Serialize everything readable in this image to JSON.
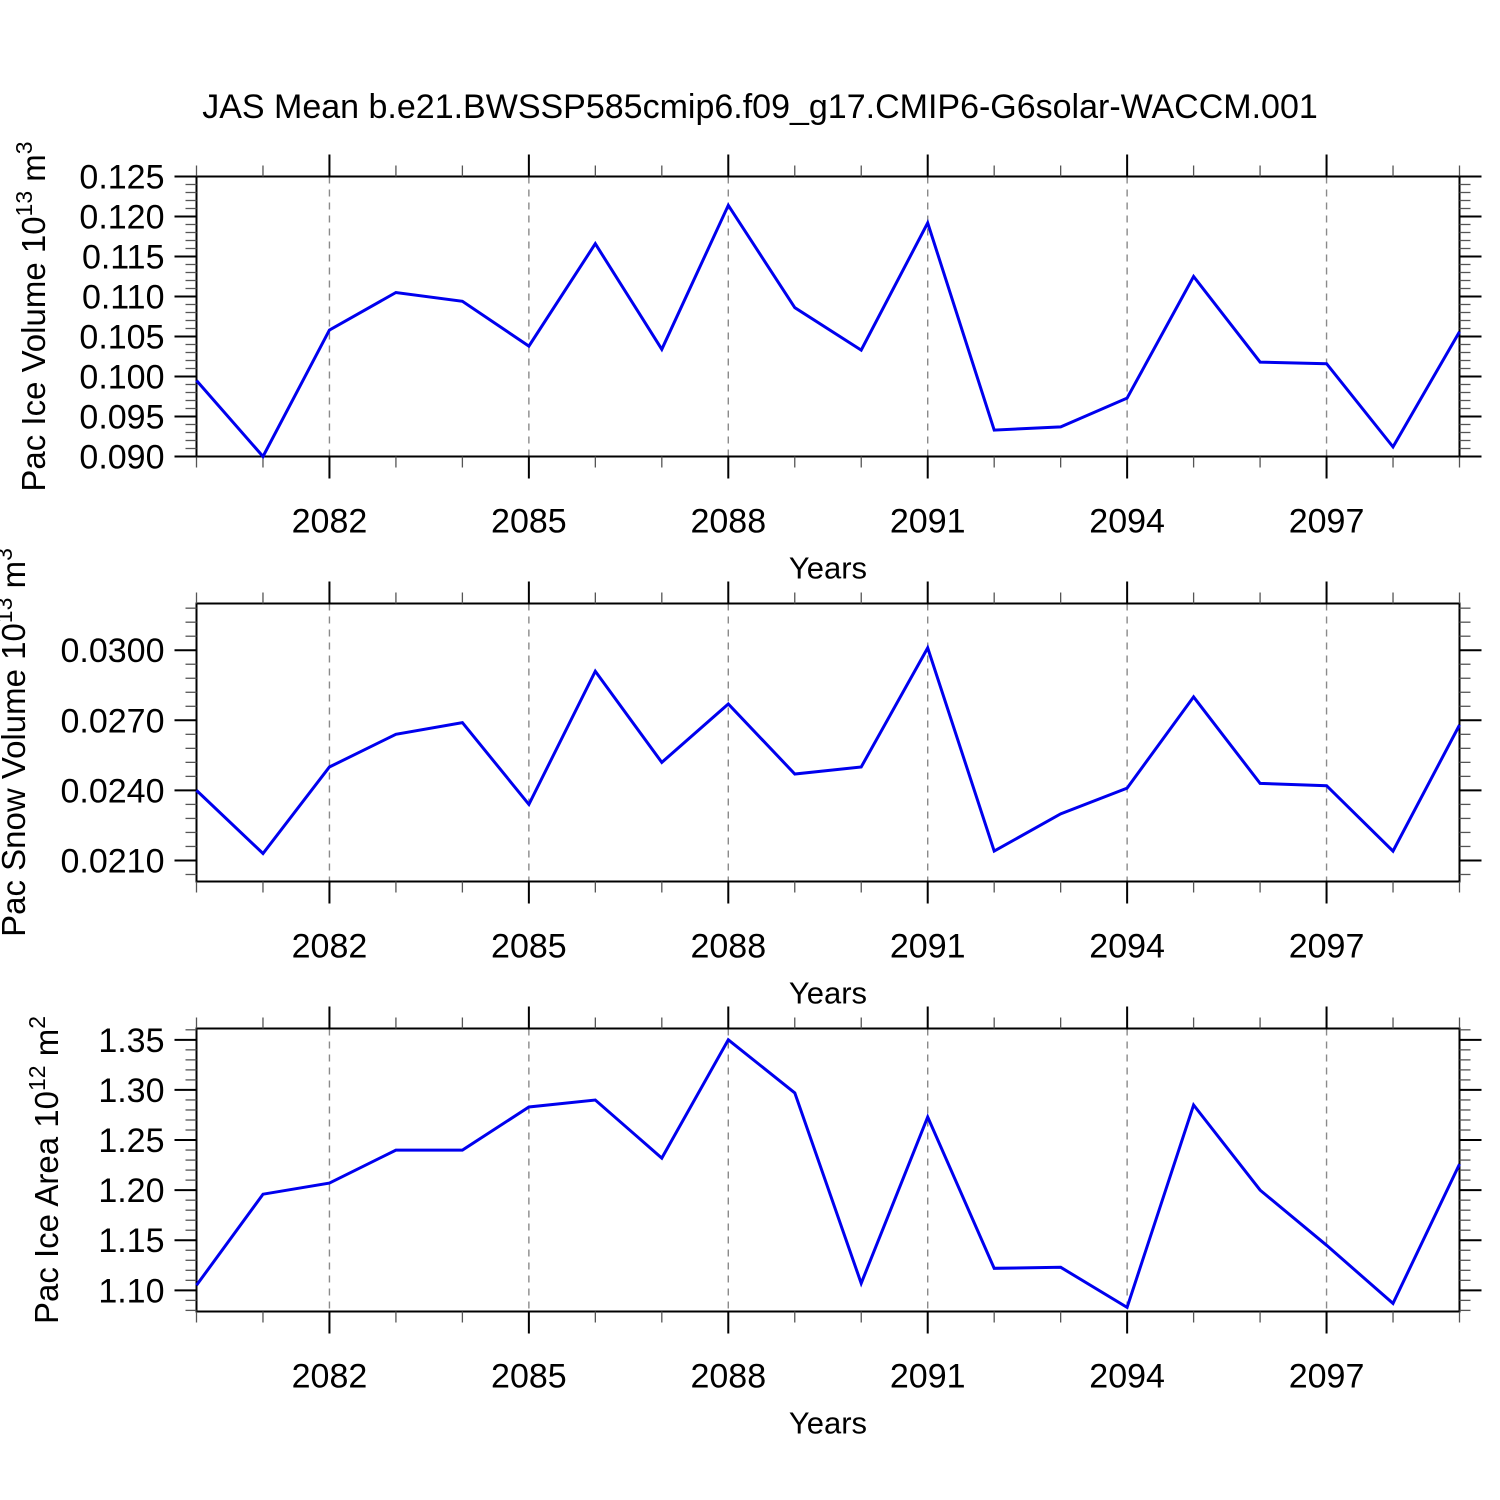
{
  "title": "JAS Mean b.e21.BWSSP585cmip6.f09_g17.CMIP6-G6solar-WACCM.001",
  "colors": {
    "line": "#0000ee",
    "grid": "#8a8a8a",
    "axis": "#000000",
    "minor_tick": "#555555",
    "background": "#ffffff"
  },
  "x_axis": {
    "label": "Years",
    "range": [
      2080,
      2099
    ],
    "major_ticks": [
      2082,
      2085,
      2088,
      2091,
      2094,
      2097
    ],
    "minor_step": 1,
    "years": [
      2080,
      2081,
      2082,
      2083,
      2084,
      2085,
      2086,
      2087,
      2088,
      2089,
      2090,
      2091,
      2092,
      2093,
      2094,
      2095,
      2096,
      2097,
      2098,
      2099
    ]
  },
  "chart_data": [
    {
      "name": "pac-ice-volume",
      "type": "line",
      "title": "Pac Ice Volume",
      "ylabel_text": "Pac Ice Volume 10^13 m^3",
      "ylabel_parts": [
        {
          "t": "Pac Ice Volume 10",
          "sup": false
        },
        {
          "t": "13",
          "sup": true
        },
        {
          "t": " m",
          "sup": false
        },
        {
          "t": "3",
          "sup": true
        }
      ],
      "xlabel": "Years",
      "ylim": [
        0.09,
        0.125
      ],
      "y_major_ticks": [
        {
          "value": 0.125,
          "label": "0.125"
        },
        {
          "value": 0.12,
          "label": "0.120"
        },
        {
          "value": 0.115,
          "label": "0.115"
        },
        {
          "value": 0.11,
          "label": "0.110"
        },
        {
          "value": 0.105,
          "label": "0.105"
        },
        {
          "value": 0.1,
          "label": "0.100"
        },
        {
          "value": 0.095,
          "label": "0.095"
        },
        {
          "value": 0.09,
          "label": "0.090"
        }
      ],
      "y_minor_step": 0.001,
      "grid": "vertical-dashed",
      "legend": "none",
      "x": [
        2080,
        2081,
        2082,
        2083,
        2084,
        2085,
        2086,
        2087,
        2088,
        2089,
        2090,
        2091,
        2092,
        2093,
        2094,
        2095,
        2096,
        2097,
        2098,
        2099
      ],
      "values": [
        0.0995,
        0.09,
        0.1058,
        0.1105,
        0.1094,
        0.1038,
        0.1166,
        0.1034,
        0.1214,
        0.1086,
        0.1033,
        0.1192,
        0.0933,
        0.0937,
        0.0973,
        0.1125,
        0.1018,
        0.1016,
        0.0912,
        0.1056
      ]
    },
    {
      "name": "pac-snow-volume",
      "type": "line",
      "title": "Pac Snow Volume",
      "ylabel_text": "Pac Snow Volume 10^13 m^3",
      "ylabel_parts": [
        {
          "t": "Pac Snow Volume 10",
          "sup": false
        },
        {
          "t": "13",
          "sup": true
        },
        {
          "t": " m",
          "sup": false
        },
        {
          "t": "3",
          "sup": true
        }
      ],
      "xlabel": "Years",
      "ylim": [
        0.0201,
        0.032
      ],
      "y_major_ticks": [
        {
          "value": 0.03,
          "label": "0.0300"
        },
        {
          "value": 0.027,
          "label": "0.0270"
        },
        {
          "value": 0.024,
          "label": "0.0240"
        },
        {
          "value": 0.021,
          "label": "0.0210"
        }
      ],
      "y_minor_step": 0.0006,
      "grid": "vertical-dashed",
      "legend": "none",
      "x": [
        2080,
        2081,
        2082,
        2083,
        2084,
        2085,
        2086,
        2087,
        2088,
        2089,
        2090,
        2091,
        2092,
        2093,
        2094,
        2095,
        2096,
        2097,
        2098,
        2099
      ],
      "values": [
        0.024,
        0.0213,
        0.025,
        0.0264,
        0.0269,
        0.0234,
        0.0291,
        0.0252,
        0.0277,
        0.0247,
        0.025,
        0.0301,
        0.0214,
        0.023,
        0.0241,
        0.028,
        0.0243,
        0.0242,
        0.0214,
        0.0268
      ]
    },
    {
      "name": "pac-ice-area",
      "type": "line",
      "title": "Pac Ice Area",
      "ylabel_text": "Pac Ice Area 10^12 m^2",
      "ylabel_parts": [
        {
          "t": "Pac Ice Area 10",
          "sup": false
        },
        {
          "t": "12",
          "sup": true
        },
        {
          "t": " m",
          "sup": false
        },
        {
          "t": "2",
          "sup": true
        }
      ],
      "xlabel": "Years",
      "ylim": [
        1.0789,
        1.3613
      ],
      "y_major_ticks": [
        {
          "value": 1.35,
          "label": "1.35"
        },
        {
          "value": 1.3,
          "label": "1.30"
        },
        {
          "value": 1.25,
          "label": "1.25"
        },
        {
          "value": 1.2,
          "label": "1.20"
        },
        {
          "value": 1.15,
          "label": "1.15"
        },
        {
          "value": 1.1,
          "label": "1.10"
        }
      ],
      "y_minor_step": 0.01,
      "grid": "vertical-dashed",
      "legend": "none",
      "x": [
        2080,
        2081,
        2082,
        2083,
        2084,
        2085,
        2086,
        2087,
        2088,
        2089,
        2090,
        2091,
        2092,
        2093,
        2094,
        2095,
        2096,
        2097,
        2098,
        2099
      ],
      "values": [
        1.105,
        1.196,
        1.207,
        1.24,
        1.24,
        1.283,
        1.29,
        1.232,
        1.35,
        1.297,
        1.107,
        1.273,
        1.122,
        1.123,
        1.083,
        1.285,
        1.2,
        1.145,
        1.087,
        1.226
      ]
    }
  ]
}
